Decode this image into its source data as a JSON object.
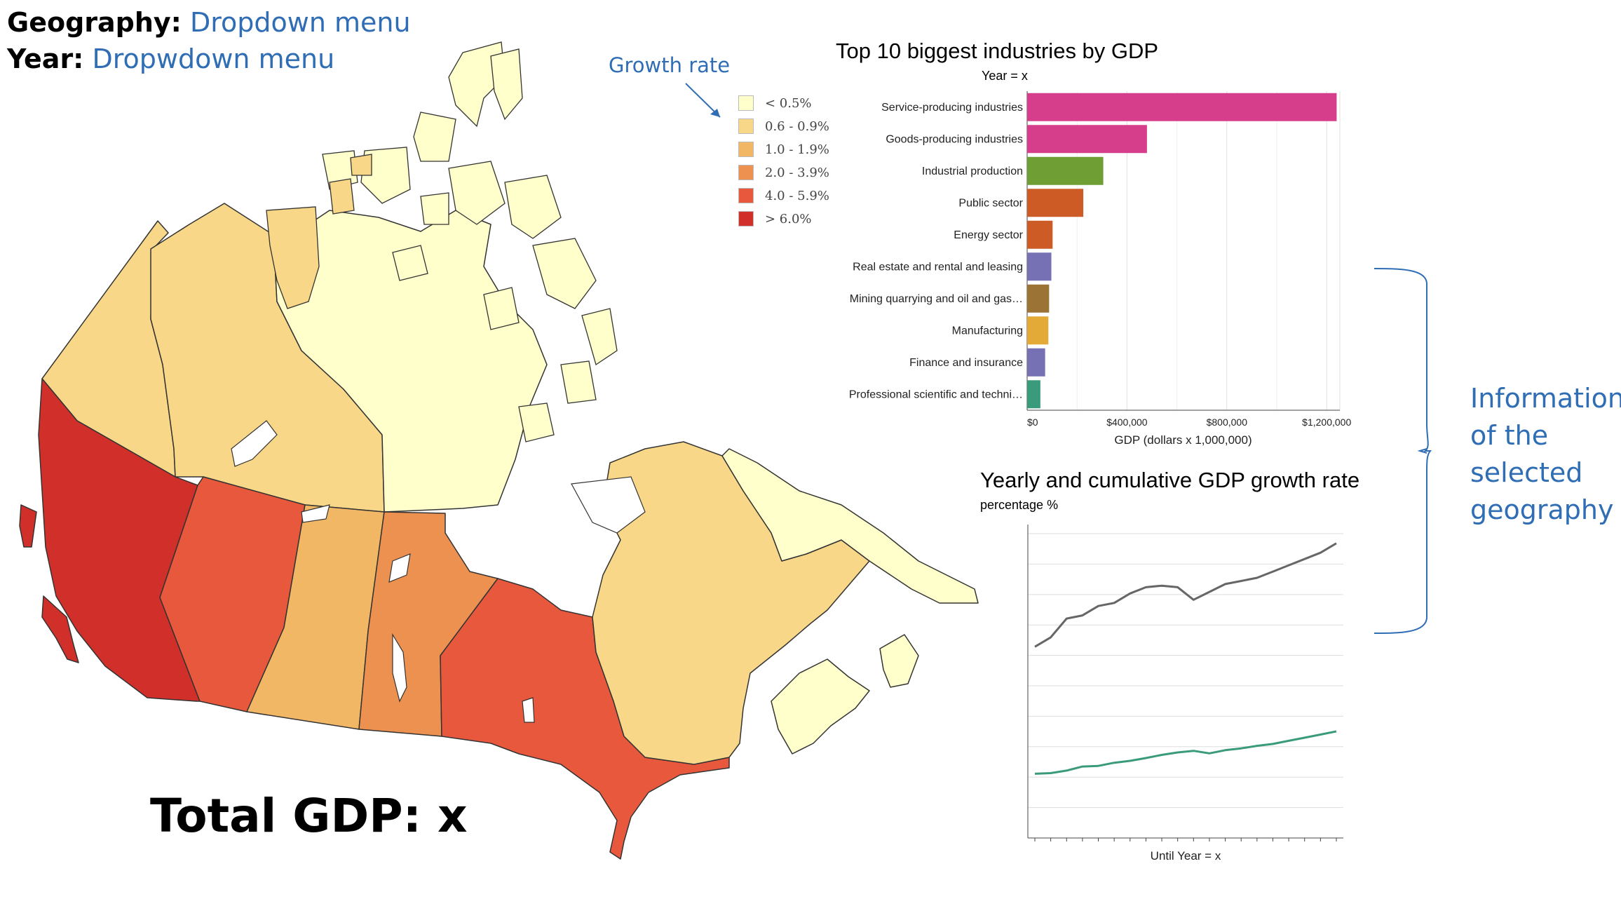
{
  "controls": {
    "geography_label": "Geography:",
    "geography_value": "Dropdown menu",
    "year_label": "Year:",
    "year_value": "Dropwdown menu"
  },
  "legend": {
    "title": "Growth rate",
    "items": [
      {
        "label": "< 0.5%",
        "color": "#ffffcc"
      },
      {
        "label": "0.6 - 0.9%",
        "color": "#f8d888"
      },
      {
        "label": "1.0 - 1.9%",
        "color": "#f2b765"
      },
      {
        "label": "2.0 - 3.9%",
        "color": "#ed9150"
      },
      {
        "label": "4.0 - 5.9%",
        "color": "#e8583c"
      },
      {
        "label": "> 6.0%",
        "color": "#d1302a"
      }
    ]
  },
  "map": {
    "regions": [
      {
        "name": "British Columbia",
        "color": "#d1302a"
      },
      {
        "name": "Alberta",
        "color": "#e8583c"
      },
      {
        "name": "Saskatchewan",
        "color": "#f2b765"
      },
      {
        "name": "Manitoba",
        "color": "#ed9150"
      },
      {
        "name": "Ontario",
        "color": "#e8583c"
      },
      {
        "name": "Quebec",
        "color": "#f8d888"
      },
      {
        "name": "Yukon",
        "color": "#f8d888"
      },
      {
        "name": "Northwest Territories",
        "color": "#f8d888"
      },
      {
        "name": "Nunavut",
        "color": "#ffffcc"
      },
      {
        "name": "Atlantic provinces",
        "color": "#ffffcc"
      }
    ]
  },
  "total_gdp": "Total GDP: x",
  "chart_data": [
    {
      "type": "bar",
      "orientation": "horizontal",
      "title": "Top 10 biggest industries by GDP",
      "subtitle": "Year = x",
      "xlabel": "GDP (dollars x 1,000,000)",
      "xlim": [
        0,
        1250000
      ],
      "ticks": [
        0,
        400000,
        800000,
        1200000
      ],
      "tick_labels": [
        "$0",
        "$400,000",
        "$800,000",
        "$1,200,000"
      ],
      "grid": true,
      "categories": [
        "Service-producing industries",
        "Goods-producing industries",
        "Industrial production",
        "Public sector",
        "Energy sector",
        "Real estate and rental and leasing",
        "Mining quarrying and oil and gas…",
        "Manufacturing",
        "Finance and insurance",
        "Professional scientific and techni…"
      ],
      "values": [
        1240000,
        480000,
        305000,
        225000,
        102000,
        97000,
        88000,
        85000,
        72000,
        53000
      ],
      "colors": [
        "#d63e8b",
        "#d63e8b",
        "#6f9e35",
        "#cc5b26",
        "#cc5b26",
        "#7670b4",
        "#9b7334",
        "#e3aa38",
        "#7670b4",
        "#3a9a7c"
      ]
    },
    {
      "type": "line",
      "title": "Yearly and cumulative GDP growth rate",
      "subtitle": "percentage %",
      "xlabel": "Until Year = x",
      "ylim": [
        0,
        100
      ],
      "grid": true,
      "x": [
        1,
        2,
        3,
        4,
        5,
        6,
        7,
        8,
        9,
        10,
        11,
        12,
        13,
        14,
        15,
        16,
        17,
        18,
        19,
        20
      ],
      "series": [
        {
          "color": "#666666",
          "values": [
            61,
            64,
            70,
            71,
            74,
            75,
            78,
            80,
            80.5,
            80,
            76,
            78.5,
            81,
            82,
            83,
            85,
            87,
            89,
            91,
            94
          ]
        },
        {
          "color": "#3a9a7c",
          "values": [
            20.5,
            20.7,
            21.5,
            22.8,
            23,
            24,
            24.6,
            25.5,
            26.5,
            27.3,
            27.8,
            27,
            28,
            28.6,
            29.4,
            30,
            31,
            32,
            33,
            34
          ]
        }
      ]
    }
  ],
  "info_note": "Information of the selected geography"
}
